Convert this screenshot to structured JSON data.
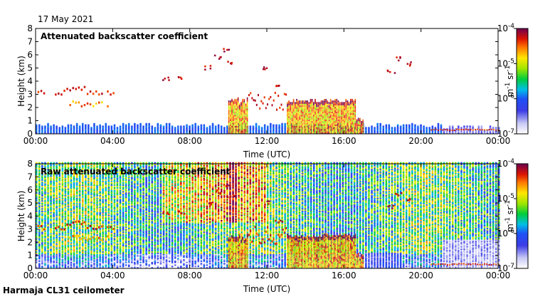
{
  "date_label": "17 May 2021",
  "footer_label": "Harmaja CL31 ceilometer",
  "chart_data": [
    {
      "type": "heatmap",
      "title": "Attenuated backscatter coefficient",
      "xlabel": "Time (UTC)",
      "ylabel": "Height (km)",
      "x_ticks": [
        "00:00",
        "04:00",
        "08:00",
        "12:00",
        "16:00",
        "20:00",
        "00:00"
      ],
      "y_ticks": [
        "0",
        "1",
        "2",
        "3",
        "4",
        "5",
        "6",
        "7",
        "8"
      ],
      "ylim": [
        0,
        8
      ],
      "colorbar": {
        "ticks": [
          "10^-7",
          "10^-6",
          "10^-5",
          "10^-4"
        ],
        "unit": "m^-1 sr^-1",
        "scale": "log"
      },
      "features": [
        {
          "desc": "cloud layer",
          "x_range": [
            "00:00",
            "04:00"
          ],
          "height_km": [
            2.5,
            3.5
          ]
        },
        {
          "desc": "cloud layer",
          "x_range": [
            "10:00",
            "16:00"
          ],
          "height_km": [
            1.5,
            3.0
          ]
        },
        {
          "desc": "rain/precipitation columns",
          "x_range": [
            "10:00",
            "17:00"
          ],
          "height_km": [
            0,
            2.5
          ]
        },
        {
          "desc": "high cloud fragments",
          "x_range": [
            "06:00",
            "19:00"
          ],
          "height_km": [
            3.5,
            6.2
          ]
        }
      ]
    },
    {
      "type": "heatmap",
      "title": "Raw attenuated backscatter coefficient",
      "xlabel": "Time (UTC)",
      "ylabel": "Height (km)",
      "x_ticks": [
        "00:00",
        "04:00",
        "08:00",
        "12:00",
        "16:00",
        "20:00",
        "00:00"
      ],
      "y_ticks": [
        "0",
        "1",
        "2",
        "3",
        "4",
        "5",
        "6",
        "7",
        "8"
      ],
      "ylim": [
        0,
        8
      ],
      "colorbar": {
        "ticks": [
          "10^-7",
          "10^-6",
          "10^-5",
          "10^-4"
        ],
        "unit": "m^-1 sr^-1",
        "scale": "log"
      }
    }
  ]
}
